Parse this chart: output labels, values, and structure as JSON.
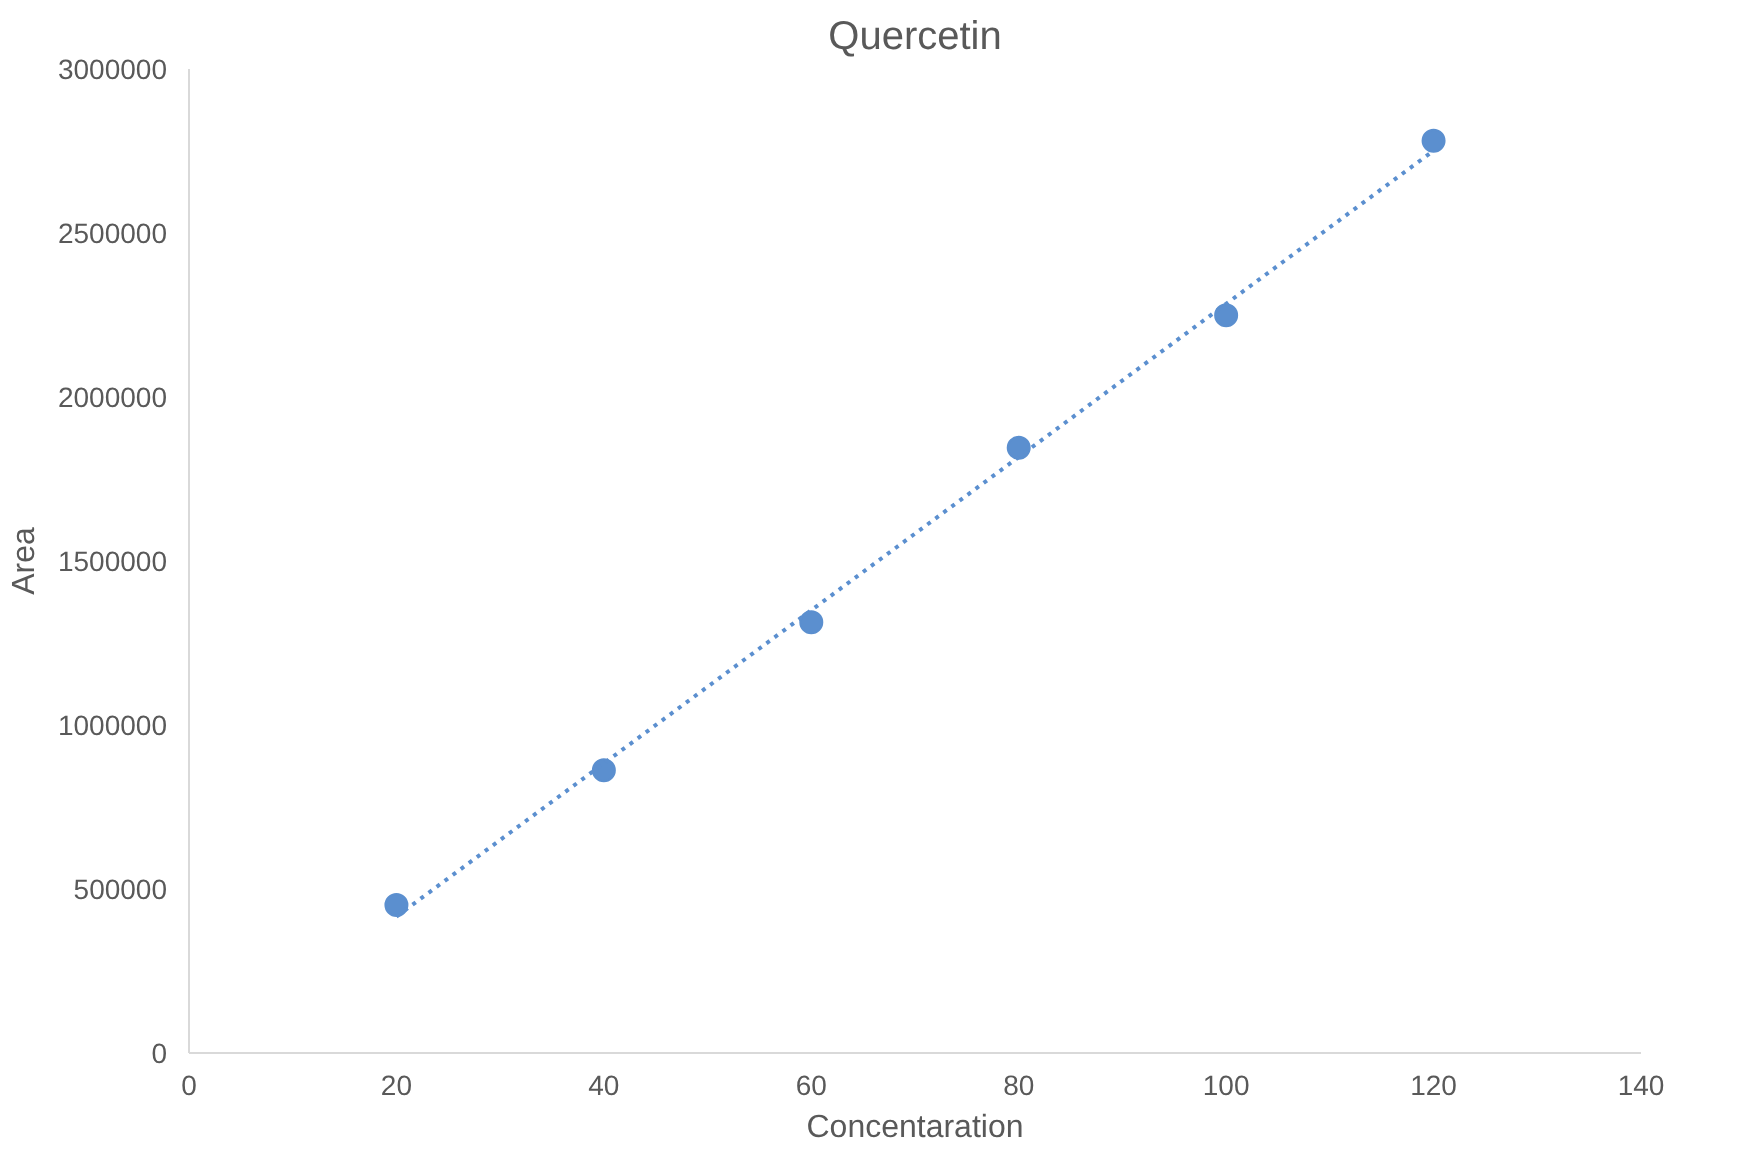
{
  "chart_data": {
    "type": "scatter",
    "title": "Quercetin",
    "xlabel": "Concentaration",
    "ylabel": "Area",
    "x": [
      20,
      40,
      60,
      80,
      100,
      120
    ],
    "series": [
      {
        "color": "#5b8fcf",
        "values": [
          451000,
          862000,
          1313000,
          1845000,
          2249000,
          2781000
        ],
        "marker": "circle"
      },
      {
        "type": "line",
        "color": "#5b8fcf",
        "x": [
          20,
          120
        ],
        "values": [
          416000,
          2751000
        ],
        "line_style": "dotted",
        "marker": "none"
      }
    ],
    "xlim": [
      0,
      140
    ],
    "xticks": [
      0,
      20,
      40,
      60,
      80,
      100,
      120,
      140
    ],
    "ylim": [
      0,
      3000000
    ],
    "yticks": [
      0,
      500000,
      1000000,
      1500000,
      2000000,
      2500000,
      3000000
    ],
    "grid": false
  }
}
